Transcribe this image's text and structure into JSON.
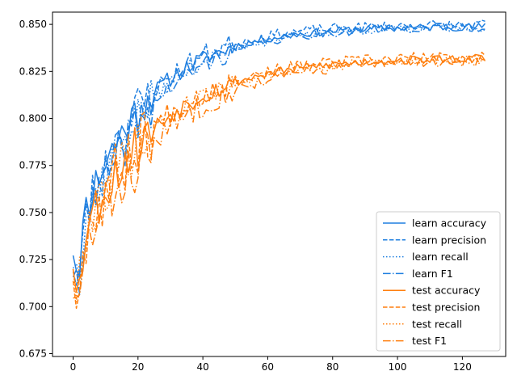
{
  "chart_data": {
    "type": "line",
    "title": "",
    "xlabel": "",
    "ylabel": "",
    "xlim": [
      -6.35,
      133.35
    ],
    "ylim": [
      0.6735,
      0.8565
    ],
    "xticks": [
      0,
      20,
      40,
      60,
      80,
      100,
      120
    ],
    "yticks": [
      0.675,
      0.7,
      0.725,
      0.75,
      0.775,
      0.8,
      0.825,
      0.85
    ],
    "grid": false,
    "legend_position": "lower-right",
    "colors": {
      "learn": "#1f7fe0",
      "test": "#ff7f0e"
    },
    "series": [
      {
        "name": "learn accuracy",
        "group": "learn",
        "dash": "solid",
        "start": 0.733,
        "plateau": 0.849,
        "tau": 21,
        "noise": 0.0035,
        "seed": 11
      },
      {
        "name": "learn precision",
        "group": "learn",
        "dash": "dashed",
        "start": 0.726,
        "plateau": 0.85,
        "tau": 20,
        "noise": 0.0045,
        "seed": 23
      },
      {
        "name": "learn recall",
        "group": "learn",
        "dash": "dotted",
        "start": 0.726,
        "plateau": 0.8485,
        "tau": 21,
        "noise": 0.0035,
        "seed": 37
      },
      {
        "name": "learn F1",
        "group": "learn",
        "dash": "dashdot",
        "start": 0.722,
        "plateau": 0.849,
        "tau": 22,
        "noise": 0.004,
        "seed": 41
      },
      {
        "name": "test accuracy",
        "group": "test",
        "dash": "solid",
        "start": 0.726,
        "plateau": 0.8325,
        "tau": 24,
        "noise": 0.004,
        "seed": 53
      },
      {
        "name": "test precision",
        "group": "test",
        "dash": "dashed",
        "start": 0.722,
        "plateau": 0.833,
        "tau": 23,
        "noise": 0.0055,
        "seed": 67
      },
      {
        "name": "test recall",
        "group": "test",
        "dash": "dotted",
        "start": 0.726,
        "plateau": 0.832,
        "tau": 24,
        "noise": 0.004,
        "seed": 79
      },
      {
        "name": "test F1",
        "group": "test",
        "dash": "dashdot",
        "start": 0.712,
        "plateau": 0.8315,
        "tau": 25,
        "noise": 0.005,
        "seed": 83
      }
    ],
    "x_count": 128
  }
}
